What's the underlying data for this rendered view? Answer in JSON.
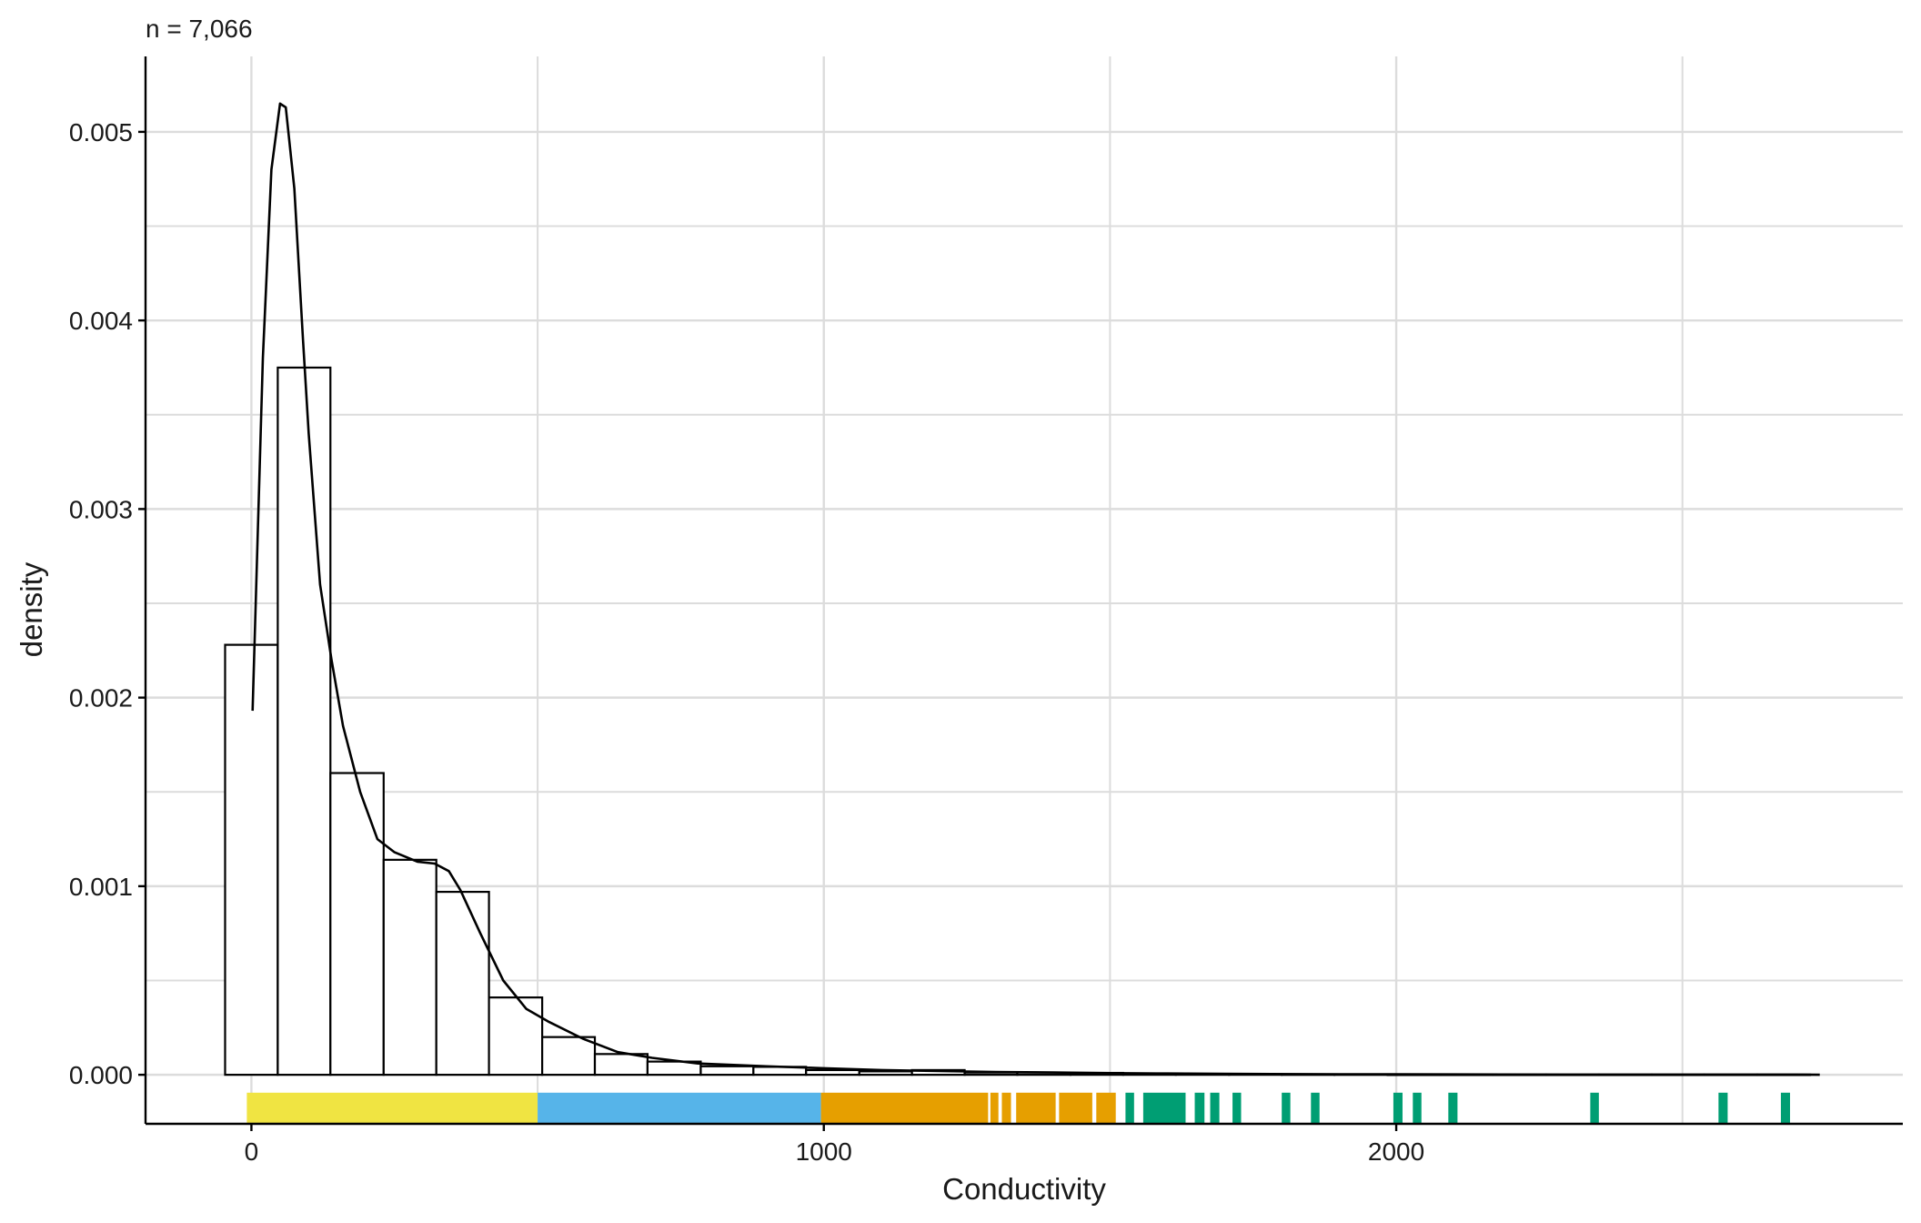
{
  "chart_data": {
    "type": "histogram",
    "subtitle": "n = 7,066",
    "xlabel": "Conductivity",
    "ylabel": "density",
    "xlim": [
      -185,
      2885
    ],
    "ylim": [
      -0.00026,
      0.0054
    ],
    "x_ticks": [
      0,
      1000,
      2000
    ],
    "x_tick_labels": [
      "0",
      "1000",
      "2000"
    ],
    "x_minor_gridlines": [
      500,
      1500,
      2500
    ],
    "y_ticks": [
      0,
      0.001,
      0.002,
      0.003,
      0.004,
      0.005
    ],
    "y_tick_labels": [
      "0.000",
      "0.001",
      "0.002",
      "0.003",
      "0.004",
      "0.005"
    ],
    "y_minor_gridlines": [
      0.0005,
      0.0015,
      0.0025,
      0.0035,
      0.0045
    ],
    "grid": true,
    "histogram": {
      "bin_edges": [
        -46,
        46,
        138,
        231,
        323,
        415,
        508,
        600,
        692,
        785,
        877,
        969,
        1062,
        1154,
        1246,
        1338,
        1431,
        1523,
        1615,
        1708,
        1800,
        1892,
        1985,
        2077,
        2169,
        2262,
        2354,
        2446,
        2538,
        2631,
        2723
      ],
      "density": [
        0.00228,
        0.00375,
        0.0016,
        0.00114,
        0.00097,
        0.00041,
        0.0002,
        0.00011,
        7e-05,
        4.5e-05,
        4.2e-05,
        2.5e-05,
        1.8e-05,
        2.5e-05,
        1.2e-05,
        1.2e-05,
        1e-05,
        6e-06,
        4e-06,
        3e-06,
        2e-06,
        2e-06,
        1e-06,
        1e-06,
        1e-06,
        1e-06,
        1e-06,
        1e-06,
        1e-06,
        1e-06
      ]
    },
    "density_curve": {
      "x": [
        2,
        20,
        35,
        50,
        60,
        75,
        90,
        100,
        120,
        140,
        160,
        190,
        220,
        250,
        290,
        320,
        345,
        365,
        400,
        440,
        480,
        520,
        580,
        640,
        700,
        780,
        900,
        1000,
        1100,
        1200,
        1300,
        1400,
        1500,
        1600,
        1700,
        1900,
        2100,
        2300,
        2500,
        2700,
        2740
      ],
      "y": [
        0.00193,
        0.0038,
        0.0048,
        0.00515,
        0.00513,
        0.0047,
        0.0039,
        0.0034,
        0.0026,
        0.0022,
        0.00185,
        0.0015,
        0.00125,
        0.00118,
        0.00113,
        0.00112,
        0.00108,
        0.00098,
        0.00075,
        0.0005,
        0.00035,
        0.00028,
        0.00019,
        0.00012,
        9e-05,
        6e-05,
        4.5e-05,
        3.5e-05,
        2.5e-05,
        2e-05,
        1.5e-05,
        1.2e-05,
        9e-06,
        7e-06,
        5e-06,
        3e-06,
        2e-06,
        1e-06,
        1e-06,
        1e-06,
        0.0
      ]
    },
    "rug": {
      "y_range": [
        -0.000255,
        -9.5e-05
      ],
      "segments": [
        {
          "class": "low",
          "color": "#F0E442",
          "from": -8,
          "to": 500
        },
        {
          "class": "medium",
          "color": "#56B4E9",
          "from": 500,
          "to": 995
        },
        {
          "class": "high",
          "color": "#E69F00",
          "from": 995,
          "to": 1287
        },
        {
          "class": "high",
          "color": "#E69F00",
          "from": 1291,
          "to": 1305
        },
        {
          "class": "high",
          "color": "#E69F00",
          "from": 1311,
          "to": 1327
        },
        {
          "class": "high",
          "color": "#E69F00",
          "from": 1336,
          "to": 1405
        },
        {
          "class": "high",
          "color": "#E69F00",
          "from": 1411,
          "to": 1469
        },
        {
          "class": "high",
          "color": "#E69F00",
          "from": 1476,
          "to": 1510
        },
        {
          "class": "very high",
          "color": "#009E73",
          "from": 1527,
          "to": 1542
        },
        {
          "class": "very high",
          "color": "#009E73",
          "from": 1558,
          "to": 1632
        },
        {
          "class": "very high",
          "color": "#009E73",
          "from": 1648,
          "to": 1665
        },
        {
          "class": "very high",
          "color": "#009E73",
          "from": 1675,
          "to": 1691
        },
        {
          "class": "very high",
          "color": "#009E73",
          "from": 1714,
          "to": 1729
        },
        {
          "class": "very high",
          "color": "#009E73",
          "from": 1800,
          "to": 1815
        },
        {
          "class": "very high",
          "color": "#009E73",
          "from": 1851,
          "to": 1866
        },
        {
          "class": "very high",
          "color": "#009E73",
          "from": 1995,
          "to": 2011
        },
        {
          "class": "very high",
          "color": "#009E73",
          "from": 2029,
          "to": 2044
        },
        {
          "class": "very high",
          "color": "#009E73",
          "from": 2091,
          "to": 2107
        },
        {
          "class": "very high",
          "color": "#009E73",
          "from": 2339,
          "to": 2354
        },
        {
          "class": "very high",
          "color": "#009E73",
          "from": 2563,
          "to": 2579
        },
        {
          "class": "very high",
          "color": "#009E73",
          "from": 2672,
          "to": 2688
        }
      ]
    },
    "colors": {
      "grid": "#dcdcdc",
      "axis": "#000000",
      "bar_fill": "#ffffff",
      "bar_stroke": "#000000",
      "curve": "#000000"
    }
  }
}
